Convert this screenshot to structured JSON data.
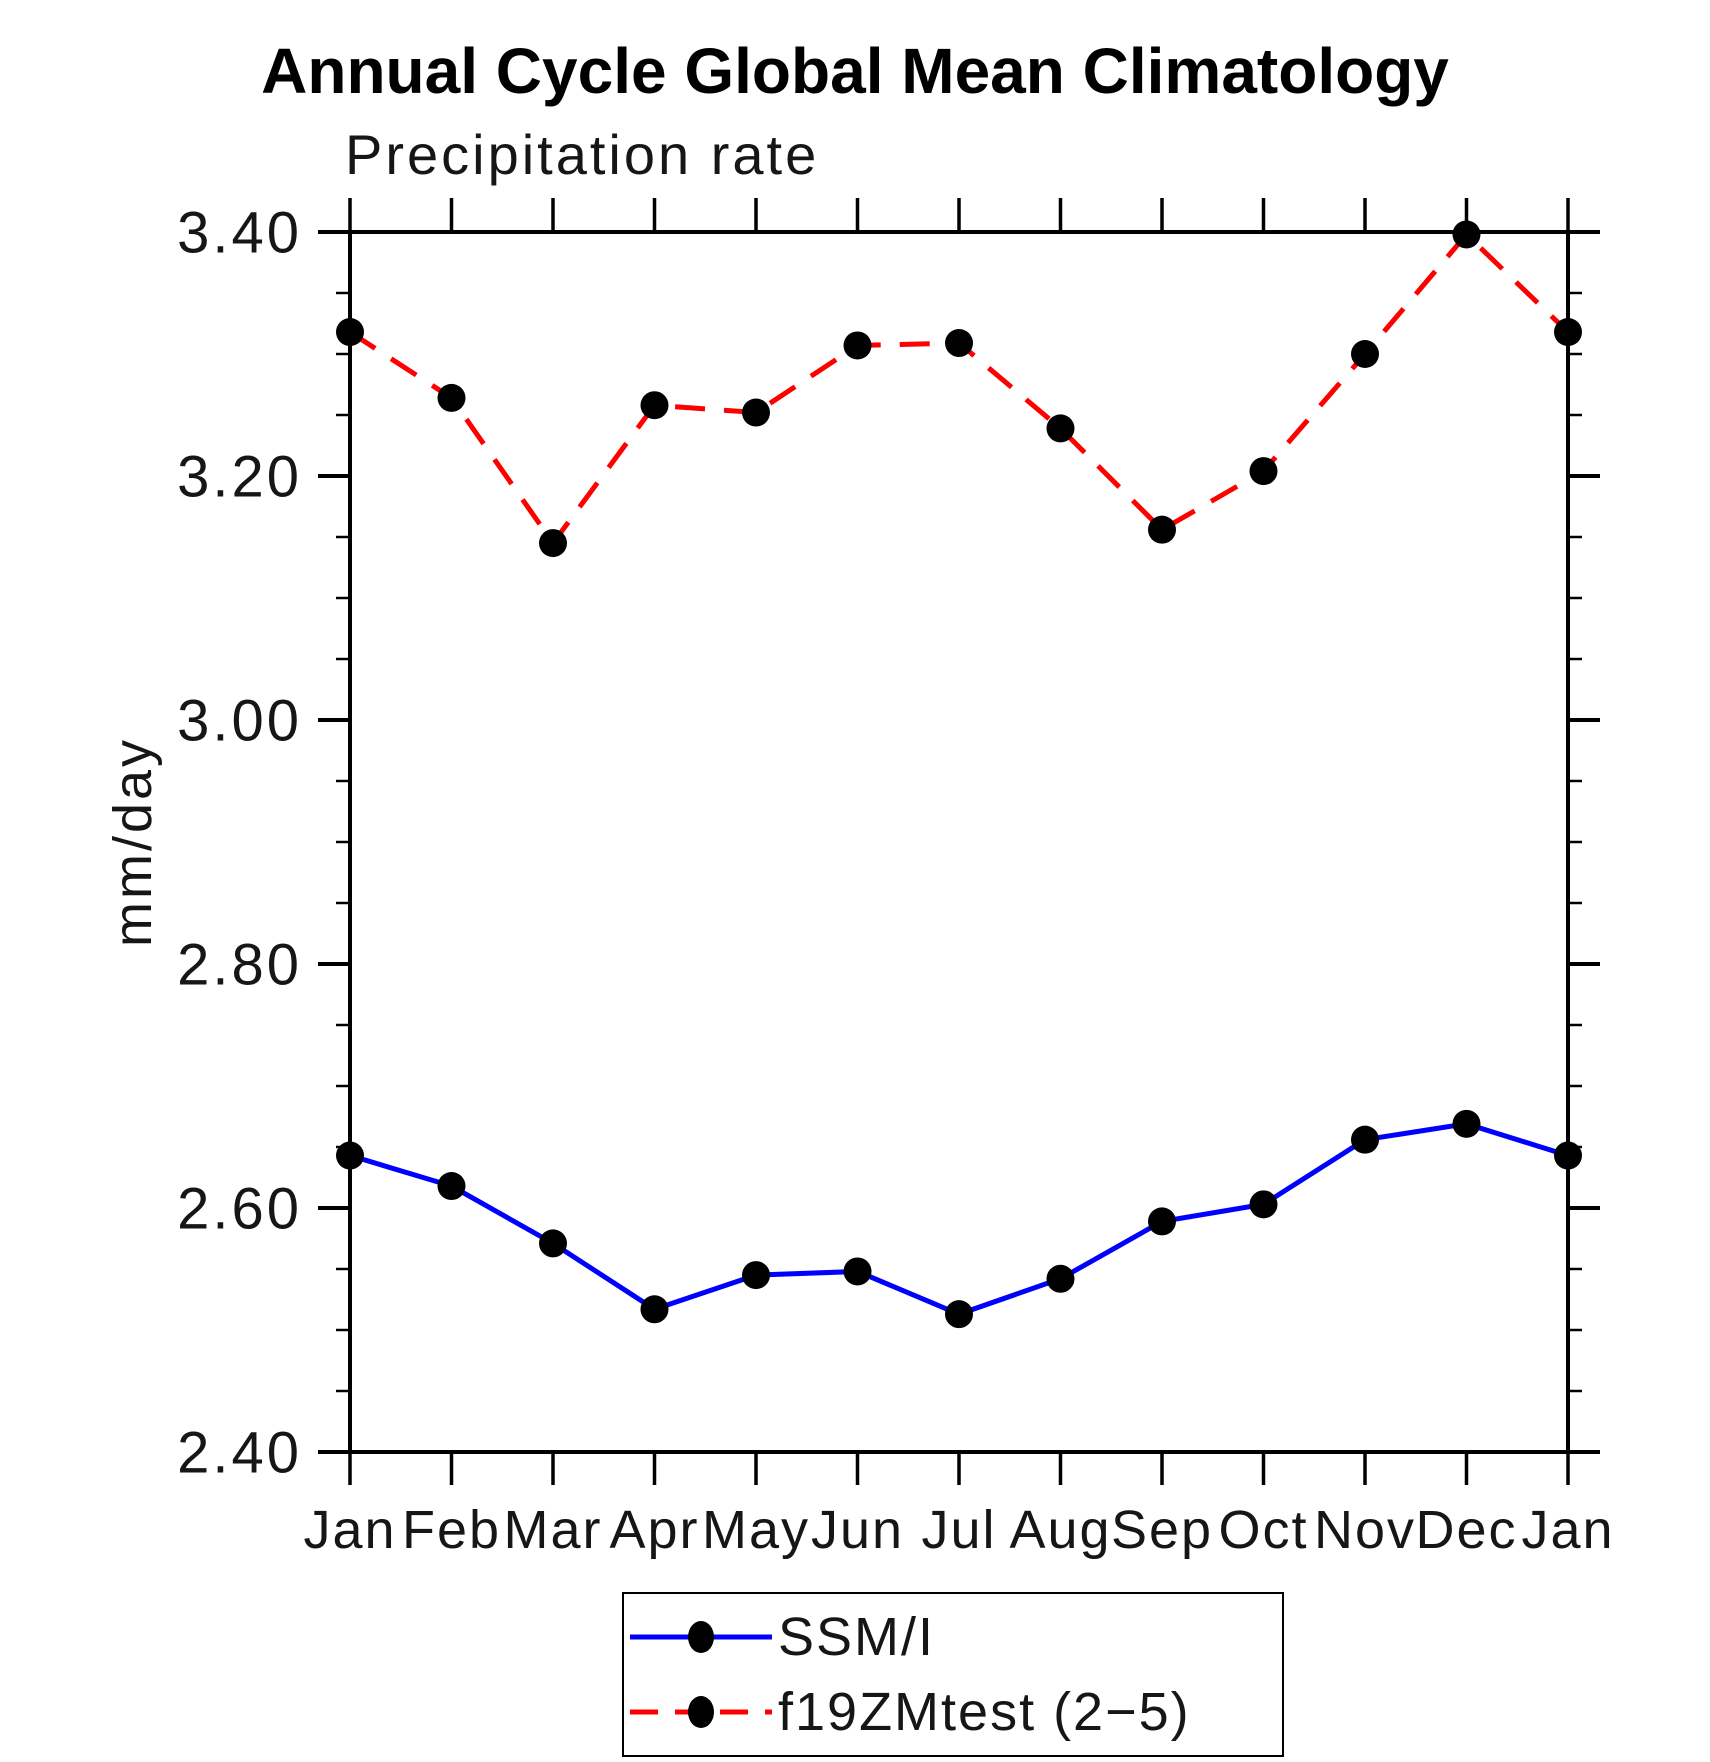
{
  "page_title": "Annual Cycle Global Mean Climatology",
  "chart_data": {
    "type": "line",
    "title": "Annual Cycle Global Mean Climatology",
    "subtitle": "Precipitation rate",
    "xlabel": "",
    "ylabel": "mm/day",
    "x_categories": [
      "Jan",
      "Feb",
      "Mar",
      "Apr",
      "May",
      "Jun",
      "Jul",
      "Aug",
      "Sep",
      "Oct",
      "Nov",
      "Dec",
      "Jan"
    ],
    "ylim": [
      2.4,
      3.4
    ],
    "y_major_ticks": [
      2.4,
      2.6,
      2.8,
      3.0,
      3.2,
      3.4
    ],
    "y_tick_labels": [
      "2.40",
      "2.60",
      "2.80",
      "3.00",
      "3.20",
      "3.40"
    ],
    "y_minor_step": 0.05,
    "grid": "off",
    "legend_position": "bottom-center",
    "axis_color": "#000000",
    "marker_color": "#000000",
    "series": [
      {
        "name": "SSM/I",
        "color": "#0000ff",
        "line_style": "solid",
        "marker": "circle",
        "values": [
          2.643,
          2.618,
          2.571,
          2.517,
          2.545,
          2.548,
          2.513,
          2.542,
          2.589,
          2.603,
          2.656,
          2.669,
          2.643
        ]
      },
      {
        "name": "f19ZMtest (2−5)",
        "color": "#ff0000",
        "line_style": "dashed",
        "marker": "circle",
        "values": [
          3.318,
          3.264,
          3.145,
          3.258,
          3.252,
          3.307,
          3.309,
          3.239,
          3.156,
          3.204,
          3.3,
          3.398,
          3.318
        ]
      }
    ]
  }
}
